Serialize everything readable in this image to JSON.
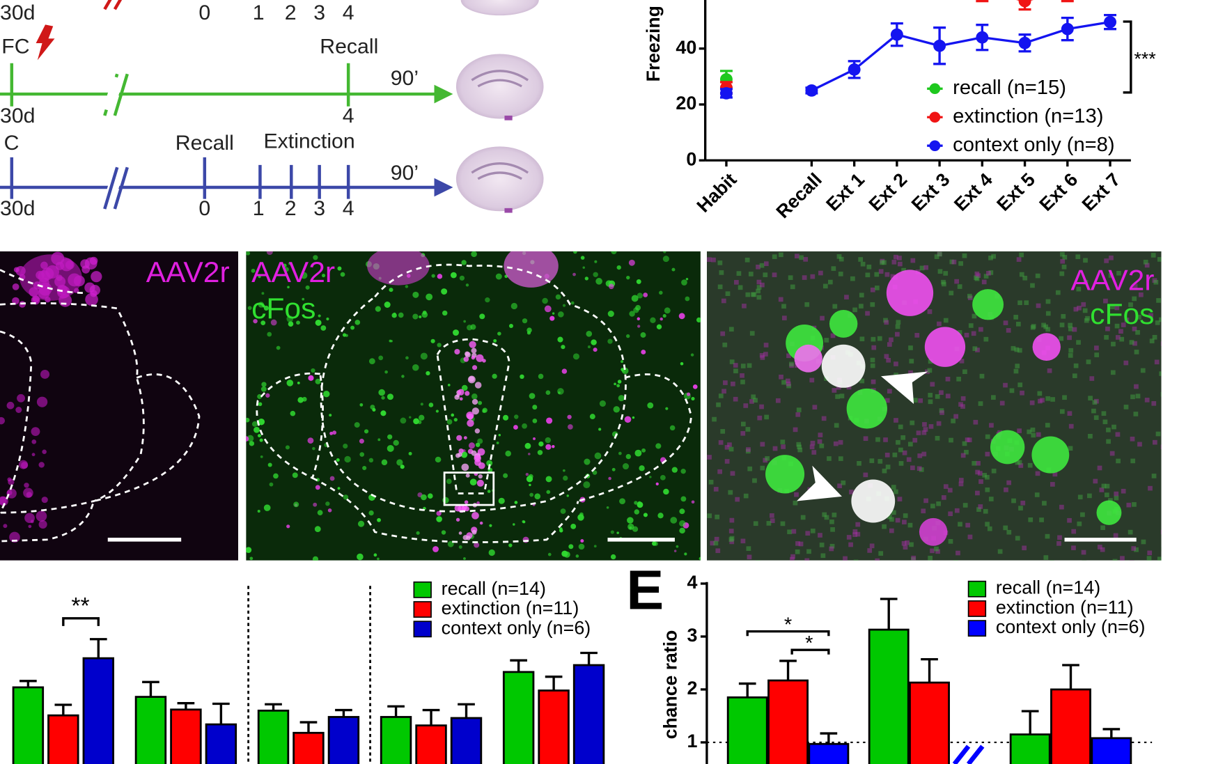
{
  "timelines": [
    {
      "days": "30d",
      "points": [
        "0",
        "1",
        "2",
        "3",
        "4"
      ]
    },
    {
      "phase_labels": [
        "FC",
        "Recall"
      ],
      "duration": "90’",
      "days": "30d",
      "points": [
        "4"
      ]
    },
    {
      "phase_labels": [
        "C",
        "Recall",
        "Extinction"
      ],
      "duration": "90’",
      "days": "30d",
      "points": [
        "0",
        "1",
        "2",
        "3",
        "4"
      ]
    }
  ],
  "images": [
    {
      "labels": [
        "AAV2r"
      ]
    },
    {
      "labels": [
        "AAV2r",
        "cFos"
      ]
    },
    {
      "labels": [
        "AAV2r",
        "cFos"
      ]
    }
  ],
  "chart_data": [
    {
      "type": "line",
      "y_label": "Freezing",
      "categories": [
        "Habit",
        null,
        "Recall",
        "Ext 1",
        "Ext 2",
        "Ext 3",
        "Ext 4",
        "Ext 5",
        "Ext 6",
        "Ext 7"
      ],
      "series": [
        {
          "name": "recall (n=15)",
          "color": "#1ec81e",
          "values": [
            29,
            null,
            null,
            null,
            null,
            null,
            null,
            null,
            null,
            null
          ],
          "errors": [
            3,
            null,
            null,
            null,
            null,
            null,
            null,
            null,
            null,
            null
          ]
        },
        {
          "name": "extinction (n=13)",
          "color": "#f01414",
          "values": [
            26,
            null,
            null,
            null,
            null,
            null,
            61,
            57,
            61,
            null
          ],
          "errors": [
            2,
            null,
            null,
            null,
            null,
            null,
            4,
            3,
            4,
            null
          ]
        },
        {
          "name": "context only (n=8)",
          "color": "#1414f0",
          "values": [
            24,
            null,
            25,
            32.5,
            45,
            41,
            44,
            42,
            47,
            49.5
          ],
          "errors": [
            1.5,
            null,
            1,
            3,
            4,
            6.5,
            4.5,
            3,
            4,
            2.5
          ]
        }
      ],
      "ylim": [
        0,
        57
      ],
      "yticks": [
        0,
        20,
        40
      ],
      "annotation": "***",
      "legend": "lower right"
    },
    {
      "type": "bar",
      "categories": [
        null,
        null,
        null,
        null,
        null
      ],
      "series": [
        {
          "name": "recall (n=14)",
          "color": "#00c800",
          "values": [
            2.04,
            1.86,
            1.6,
            1.48,
            2.33
          ],
          "errors": [
            0.12,
            0.28,
            0.12,
            0.2,
            0.22
          ]
        },
        {
          "name": "extinction (n=11)",
          "color": "#ff0000",
          "values": [
            1.51,
            1.62,
            1.18,
            1.32,
            1.98
          ],
          "errors": [
            0.2,
            0.12,
            0.2,
            0.29,
            0.26
          ]
        },
        {
          "name": "context only (n=6)",
          "color": "#0000cc",
          "values": [
            2.59,
            1.34,
            1.48,
            1.46,
            2.46
          ],
          "errors": [
            0.36,
            0.39,
            0.13,
            0.26,
            0.23
          ]
        }
      ],
      "ylim": [
        0,
        4
      ],
      "annotation": "**",
      "legend": "upper right"
    },
    {
      "type": "bar",
      "panel": "E",
      "y_label": "chance ratio",
      "categories": [
        null,
        null,
        null
      ],
      "series": [
        {
          "name": "recall (n=14)",
          "color": "#00c800",
          "values": [
            1.85,
            3.13,
            1.15
          ],
          "errors": [
            0.26,
            0.58,
            0.44
          ]
        },
        {
          "name": "extinction (n=11)",
          "color": "#ff0000",
          "values": [
            2.17,
            2.13,
            2.0
          ],
          "errors": [
            0.37,
            0.44,
            0.46
          ]
        },
        {
          "name": "context only (n=6)",
          "color": "#0000ff",
          "values": [
            0.97,
            null,
            1.08
          ],
          "errors": [
            0.2,
            null,
            0.17
          ]
        }
      ],
      "ylim": [
        0,
        4
      ],
      "yticks": [
        1,
        2,
        3,
        4
      ],
      "reference_line": 1,
      "annotations": [
        "*",
        "*"
      ],
      "legend": "upper right"
    }
  ]
}
